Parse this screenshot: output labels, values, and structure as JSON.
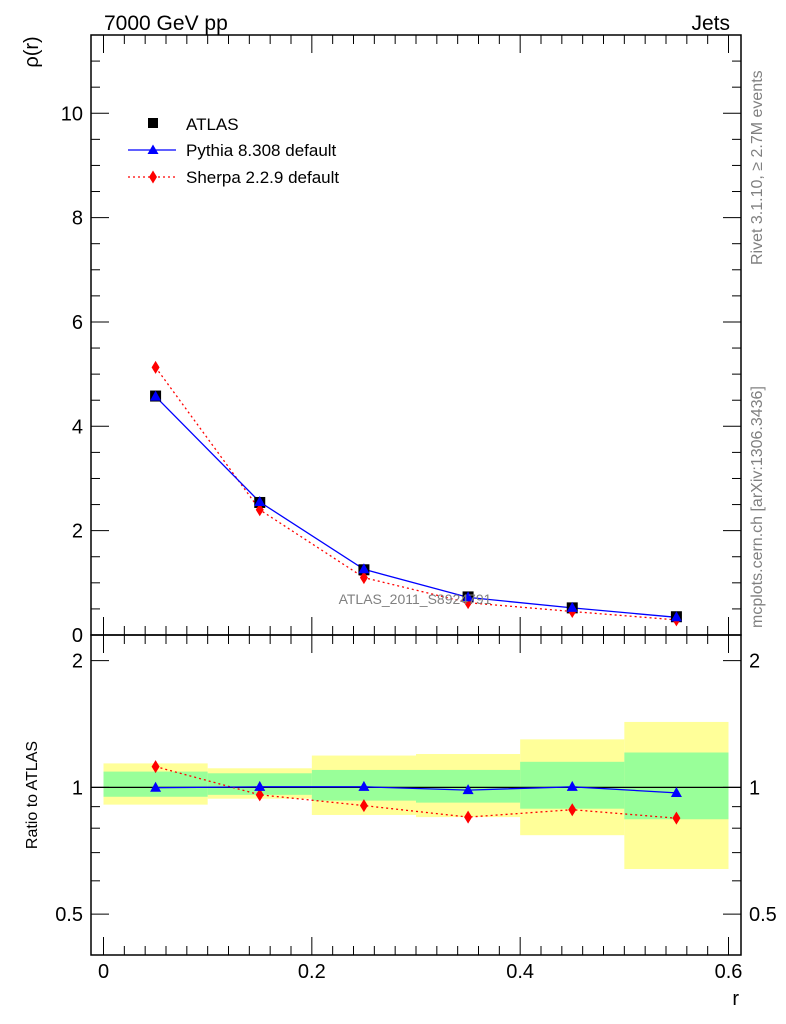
{
  "header": {
    "left_label": "7000 GeV pp",
    "right_label": "Jets"
  },
  "side": {
    "rivet_label": "Rivet 3.1.10, ≥ 2.7M events",
    "mcplots_label": "mcplots.cern.ch [arXiv:1306.3436]"
  },
  "watermark": "ATLAS_2011_S8924791",
  "colors": {
    "atlas": "#000000",
    "pythia": "#0000ff",
    "sherpa": "#ff0000",
    "band_inner": "#99ff99",
    "band_outer": "#ffff99"
  },
  "chart_data": [
    {
      "type": "line",
      "ylabel": "ρ(r)",
      "ylim": [
        0,
        11.5
      ],
      "xlim": [
        -0.012,
        0.612
      ],
      "y_ticks": [
        0,
        2,
        4,
        6,
        8,
        10
      ],
      "y_tick_labels": [
        "0",
        "2",
        "4",
        "6",
        "8",
        "10"
      ],
      "legend_position": "top-left",
      "x": [
        0.05,
        0.15,
        0.25,
        0.35,
        0.45,
        0.55
      ],
      "series": [
        {
          "name": "ATLAS",
          "marker": "square",
          "values": [
            4.58,
            2.54,
            1.25,
            0.73,
            0.52,
            0.35
          ]
        },
        {
          "name": "Pythia 8.308 default",
          "marker": "triangle",
          "line": "solid",
          "values": [
            4.57,
            2.55,
            1.26,
            0.72,
            0.52,
            0.34
          ]
        },
        {
          "name": "Sherpa 2.2.9 default",
          "marker": "diamond",
          "line": "dotted",
          "values": [
            5.13,
            2.4,
            1.1,
            0.62,
            0.45,
            0.29
          ]
        }
      ]
    },
    {
      "type": "line",
      "ylabel": "Ratio to ATLAS",
      "xlabel": "r",
      "ylim": [
        0.4,
        2.3
      ],
      "log_scale_y": true,
      "y_tick_labels": [
        "0.5",
        "1",
        "2"
      ],
      "x_tick_labels": [
        "0",
        "0.2",
        "0.4",
        "0.6"
      ],
      "x_edges": [
        0.0,
        0.1,
        0.2,
        0.3,
        0.4,
        0.5,
        0.6
      ],
      "band_inner": [
        [
          0.95,
          1.09
        ],
        [
          0.96,
          1.08
        ],
        [
          0.93,
          1.1
        ],
        [
          0.92,
          1.1
        ],
        [
          0.89,
          1.15
        ],
        [
          0.84,
          1.21
        ]
      ],
      "band_outer": [
        [
          0.91,
          1.14
        ],
        [
          0.94,
          1.11
        ],
        [
          0.86,
          1.19
        ],
        [
          0.85,
          1.2
        ],
        [
          0.77,
          1.3
        ],
        [
          0.64,
          1.43
        ]
      ],
      "x": [
        0.05,
        0.15,
        0.25,
        0.35,
        0.45,
        0.55
      ],
      "series": [
        {
          "name": "Pythia 8.308 default",
          "values": [
            0.998,
            1.003,
            1.003,
            0.985,
            1.003,
            0.97
          ]
        },
        {
          "name": "Sherpa 2.2.9 default",
          "values": [
            1.12,
            0.96,
            0.905,
            0.85,
            0.885,
            0.845
          ]
        }
      ]
    }
  ]
}
